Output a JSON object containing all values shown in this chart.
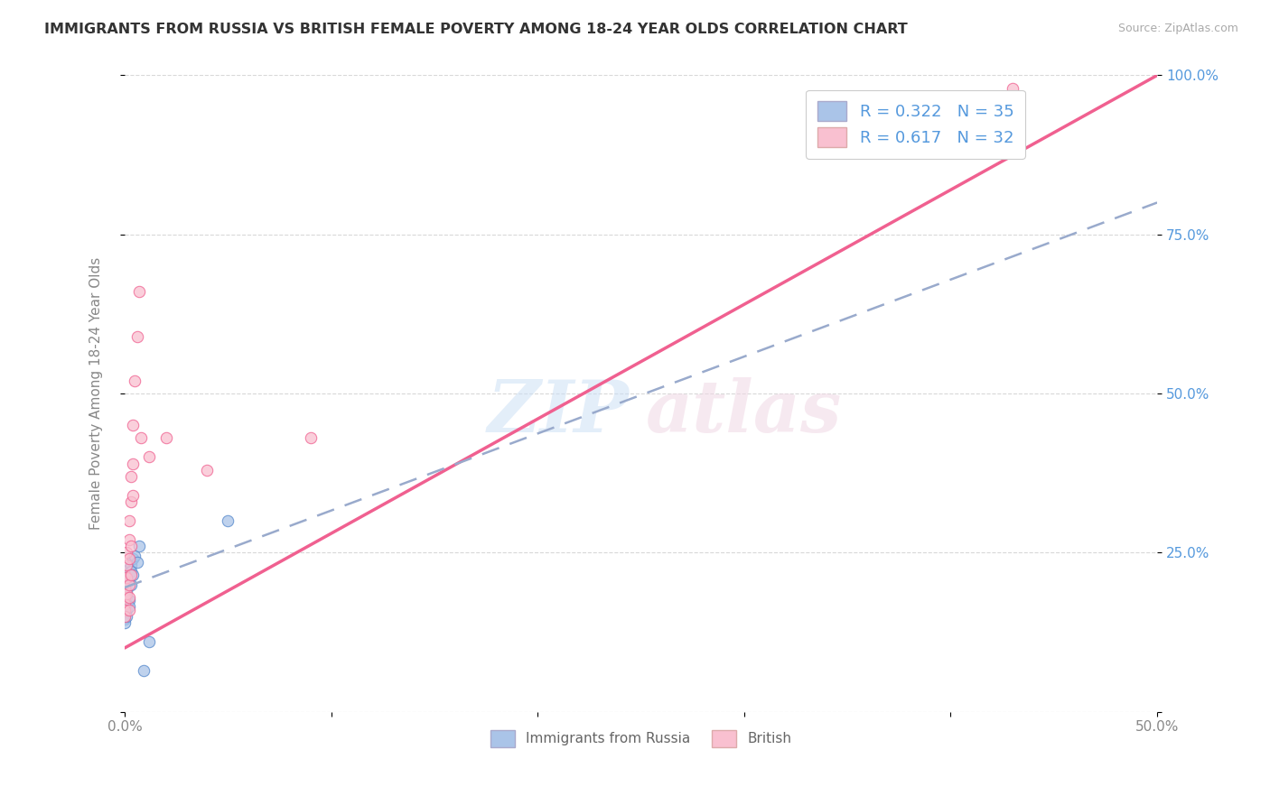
{
  "title": "IMMIGRANTS FROM RUSSIA VS BRITISH FEMALE POVERTY AMONG 18-24 YEAR OLDS CORRELATION CHART",
  "source": "Source: ZipAtlas.com",
  "ylabel": "Female Poverty Among 18-24 Year Olds",
  "xlim": [
    0.0,
    0.5
  ],
  "ylim": [
    0.0,
    1.0
  ],
  "x_ticks": [
    0.0,
    0.1,
    0.2,
    0.3,
    0.4,
    0.5
  ],
  "x_tick_labels": [
    "0.0%",
    "",
    "",
    "",
    "",
    "50.0%"
  ],
  "y_ticks": [
    0.0,
    0.25,
    0.5,
    0.75,
    1.0
  ],
  "y_tick_labels_right": [
    "",
    "25.0%",
    "50.0%",
    "75.0%",
    "100.0%"
  ],
  "legend_r1": "R = 0.322",
  "legend_n1": "N = 35",
  "legend_r2": "R = 0.617",
  "legend_n2": "N = 32",
  "russia_color": "#aac4e8",
  "british_color": "#f9c0d0",
  "russia_line_color": "#5588cc",
  "british_line_color": "#f06090",
  "russia_scatter": [
    [
      0.0,
      0.215
    ],
    [
      0.0,
      0.2
    ],
    [
      0.0,
      0.195
    ],
    [
      0.0,
      0.185
    ],
    [
      0.0,
      0.18
    ],
    [
      0.0,
      0.175
    ],
    [
      0.0,
      0.17
    ],
    [
      0.0,
      0.165
    ],
    [
      0.0,
      0.16
    ],
    [
      0.0,
      0.155
    ],
    [
      0.0,
      0.145
    ],
    [
      0.0,
      0.14
    ],
    [
      0.001,
      0.22
    ],
    [
      0.001,
      0.21
    ],
    [
      0.001,
      0.2
    ],
    [
      0.001,
      0.19
    ],
    [
      0.001,
      0.18
    ],
    [
      0.001,
      0.17
    ],
    [
      0.001,
      0.16
    ],
    [
      0.001,
      0.15
    ],
    [
      0.002,
      0.225
    ],
    [
      0.002,
      0.215
    ],
    [
      0.002,
      0.175
    ],
    [
      0.002,
      0.165
    ],
    [
      0.003,
      0.23
    ],
    [
      0.003,
      0.22
    ],
    [
      0.003,
      0.2
    ],
    [
      0.004,
      0.24
    ],
    [
      0.004,
      0.215
    ],
    [
      0.005,
      0.245
    ],
    [
      0.006,
      0.235
    ],
    [
      0.007,
      0.26
    ],
    [
      0.009,
      0.065
    ],
    [
      0.012,
      0.11
    ],
    [
      0.05,
      0.3
    ]
  ],
  "british_scatter": [
    [
      0.0,
      0.215
    ],
    [
      0.0,
      0.195
    ],
    [
      0.0,
      0.18
    ],
    [
      0.0,
      0.17
    ],
    [
      0.0,
      0.16
    ],
    [
      0.0,
      0.15
    ],
    [
      0.001,
      0.25
    ],
    [
      0.001,
      0.23
    ],
    [
      0.001,
      0.21
    ],
    [
      0.001,
      0.185
    ],
    [
      0.002,
      0.3
    ],
    [
      0.002,
      0.27
    ],
    [
      0.002,
      0.24
    ],
    [
      0.002,
      0.2
    ],
    [
      0.002,
      0.18
    ],
    [
      0.002,
      0.16
    ],
    [
      0.003,
      0.37
    ],
    [
      0.003,
      0.33
    ],
    [
      0.003,
      0.26
    ],
    [
      0.003,
      0.215
    ],
    [
      0.004,
      0.45
    ],
    [
      0.004,
      0.39
    ],
    [
      0.004,
      0.34
    ],
    [
      0.005,
      0.52
    ],
    [
      0.006,
      0.59
    ],
    [
      0.007,
      0.66
    ],
    [
      0.008,
      0.43
    ],
    [
      0.012,
      0.4
    ],
    [
      0.02,
      0.43
    ],
    [
      0.04,
      0.38
    ],
    [
      0.09,
      0.43
    ],
    [
      0.43,
      0.98
    ]
  ],
  "russia_line": [
    [
      0.0,
      0.195
    ],
    [
      0.5,
      0.8
    ]
  ],
  "british_line": [
    [
      0.0,
      0.1
    ],
    [
      0.5,
      1.0
    ]
  ],
  "watermark_zip": "ZIP",
  "watermark_atlas": "atlas",
  "background_color": "#ffffff",
  "grid_color": "#d8d8d8",
  "legend1_label": "R = 0.322   N = 35",
  "legend2_label": "R = 0.617   N = 32",
  "bottom_legend1": "Immigrants from Russia",
  "bottom_legend2": "British"
}
